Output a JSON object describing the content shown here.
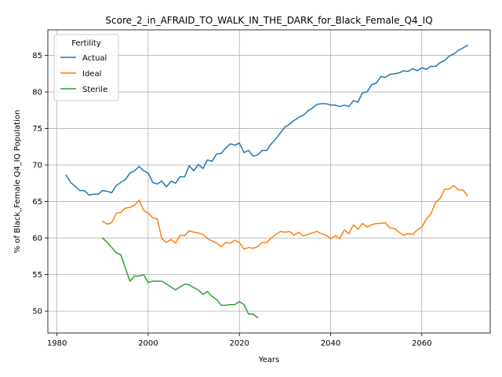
{
  "chart_data": {
    "type": "line",
    "title": "Score_2_in_AFRAID_TO_WALK_IN_THE_DARK_for_Black_Female_Q4_IQ",
    "xlabel": "Years",
    "ylabel": "% of Black_Female Q4_IQ Population",
    "xlim": [
      1978,
      2075
    ],
    "ylim": [
      47,
      88.5
    ],
    "xticks": [
      1980,
      2000,
      2020,
      2040,
      2060
    ],
    "yticks": [
      50,
      55,
      60,
      65,
      70,
      75,
      80,
      85
    ],
    "grid": true,
    "legend": {
      "title": "Fertility",
      "placement": "top-left"
    },
    "series": [
      {
        "name": "Actual",
        "color": "#1f77b4",
        "x": [
          1982,
          1983,
          1984,
          1985,
          1986,
          1987,
          1988,
          1989,
          1990,
          1991,
          1992,
          1993,
          1994,
          1995,
          1996,
          1997,
          1998,
          1999,
          2000,
          2001,
          2002,
          2003,
          2004,
          2005,
          2006,
          2007,
          2008,
          2009,
          2010,
          2011,
          2012,
          2013,
          2014,
          2015,
          2016,
          2017,
          2018,
          2019,
          2020,
          2021,
          2022,
          2023,
          2024,
          2025,
          2026,
          2027,
          2028,
          2029,
          2030,
          2031,
          2032,
          2033,
          2034,
          2035,
          2036,
          2037,
          2038,
          2039,
          2040,
          2041,
          2042,
          2043,
          2044,
          2045,
          2046,
          2047,
          2048,
          2049,
          2050,
          2051,
          2052,
          2053,
          2054,
          2055,
          2056,
          2057,
          2058,
          2059,
          2060,
          2061,
          2062,
          2063,
          2064,
          2065,
          2066,
          2067,
          2068,
          2069,
          2070
        ],
        "y": [
          68.6,
          67.6,
          67.1,
          66.5,
          66.5,
          65.9,
          66.0,
          66.0,
          66.5,
          66.4,
          66.2,
          67.2,
          67.6,
          68.0,
          68.9,
          69.2,
          69.8,
          69.2,
          68.9,
          67.6,
          67.4,
          67.8,
          67.0,
          67.8,
          67.5,
          68.4,
          68.4,
          69.9,
          69.2,
          70.1,
          69.5,
          70.7,
          70.5,
          71.5,
          71.6,
          72.3,
          72.9,
          72.7,
          73.0,
          71.7,
          72.0,
          71.2,
          71.4,
          72.0,
          72.0,
          72.9,
          73.6,
          74.4,
          75.2,
          75.6,
          76.1,
          76.5,
          76.8,
          77.4,
          77.8,
          78.3,
          78.4,
          78.4,
          78.2,
          78.2,
          78.0,
          78.2,
          78.0,
          78.8,
          78.6,
          79.9,
          80.0,
          81.0,
          81.2,
          82.1,
          82.0,
          82.4,
          82.5,
          82.6,
          82.9,
          82.8,
          83.2,
          82.9,
          83.3,
          83.1,
          83.5,
          83.5,
          84.0,
          84.3,
          84.9,
          85.2,
          85.7,
          86.0,
          86.4
        ]
      },
      {
        "name": "Ideal",
        "color": "#ff7f0e",
        "x": [
          1990,
          1991,
          1992,
          1993,
          1994,
          1995,
          1996,
          1997,
          1998,
          1999,
          2000,
          2001,
          2002,
          2003,
          2004,
          2005,
          2006,
          2007,
          2008,
          2009,
          2010,
          2011,
          2012,
          2013,
          2014,
          2015,
          2016,
          2017,
          2018,
          2019,
          2020,
          2021,
          2022,
          2023,
          2024,
          2025,
          2026,
          2027,
          2028,
          2029,
          2030,
          2031,
          2032,
          2033,
          2034,
          2035,
          2036,
          2037,
          2038,
          2039,
          2040,
          2041,
          2042,
          2043,
          2044,
          2045,
          2046,
          2047,
          2048,
          2049,
          2050,
          2051,
          2052,
          2053,
          2054,
          2055,
          2056,
          2057,
          2058,
          2059,
          2060,
          2061,
          2062,
          2063,
          2064,
          2065,
          2066,
          2067,
          2068,
          2069,
          2070
        ],
        "y": [
          62.3,
          61.9,
          62.1,
          63.4,
          63.5,
          64.1,
          64.2,
          64.5,
          65.2,
          63.8,
          63.4,
          62.8,
          62.6,
          59.9,
          59.4,
          59.8,
          59.3,
          60.4,
          60.3,
          61.0,
          60.8,
          60.7,
          60.5,
          59.9,
          59.6,
          59.3,
          58.8,
          59.4,
          59.3,
          59.7,
          59.4,
          58.5,
          58.7,
          58.6,
          58.8,
          59.4,
          59.4,
          60.0,
          60.5,
          60.9,
          60.8,
          60.9,
          60.4,
          60.8,
          60.3,
          60.5,
          60.7,
          60.9,
          60.6,
          60.4,
          59.9,
          60.3,
          59.9,
          61.1,
          60.6,
          61.8,
          61.2,
          62.0,
          61.5,
          61.8,
          62.0,
          62.0,
          62.1,
          61.4,
          61.3,
          60.8,
          60.4,
          60.6,
          60.5,
          61.1,
          61.5,
          62.6,
          63.3,
          64.9,
          65.4,
          66.7,
          66.7,
          67.2,
          66.6,
          66.6,
          65.8
        ]
      },
      {
        "name": "Sterile",
        "color": "#2ca02c",
        "x": [
          1990,
          1991,
          1992,
          1993,
          1994,
          1995,
          1996,
          1997,
          1998,
          1999,
          2000,
          2001,
          2002,
          2003,
          2004,
          2005,
          2006,
          2007,
          2008,
          2009,
          2010,
          2011,
          2012,
          2013,
          2014,
          2015,
          2016,
          2017,
          2018,
          2019,
          2020,
          2021,
          2022,
          2023,
          2024
        ],
        "y": [
          60.0,
          59.4,
          58.7,
          58.0,
          57.7,
          55.9,
          54.1,
          54.8,
          54.8,
          55.0,
          53.9,
          54.1,
          54.1,
          54.1,
          53.7,
          53.3,
          52.9,
          53.3,
          53.7,
          53.6,
          53.2,
          52.9,
          52.3,
          52.7,
          52.0,
          51.6,
          50.8,
          50.8,
          50.9,
          50.9,
          51.3,
          50.9,
          49.6,
          49.6,
          49.1
        ]
      }
    ]
  }
}
